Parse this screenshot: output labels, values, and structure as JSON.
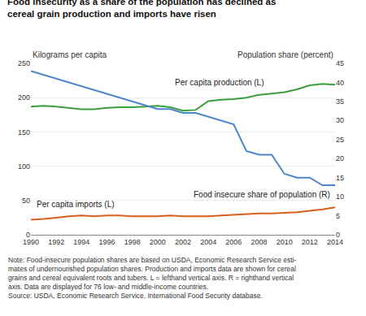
{
  "chart_data": {
    "type": "line",
    "title": "Food insecurity as a share of the population has declined as cereal grain production and imports have risen",
    "ylabel": "Kilograms per capita",
    "y2label": "Population share (percent)",
    "note": "Note: Food-insecure population shares are based on USDA, Economic Research Service esti-\nmates of undernourished population shares. Production and imports data are shown for cereal\ngrains and cereal equivalent roots and tubers. L = lefthand vertical axis. R = righthand vertical\naxis. Data are displayed for 76 low- and middle-income countries.\nSource: USDA, Economic Research Service, International Food Security database.",
    "x": [
      1990,
      1991,
      1992,
      1993,
      1994,
      1995,
      1996,
      1997,
      1998,
      1999,
      2000,
      2001,
      2002,
      2003,
      2004,
      2005,
      2006,
      2007,
      2008,
      2009,
      2010,
      2011,
      2012,
      2013,
      2014
    ],
    "series": [
      {
        "name": "Per capita production (L)",
        "color": "#3a9e3a",
        "values": [
          187,
          188,
          187,
          185,
          183,
          183,
          185,
          186,
          186,
          187,
          188,
          186,
          181,
          182,
          195,
          197,
          198,
          200,
          204,
          206,
          208,
          212,
          218,
          220,
          219
        ]
      },
      {
        "name": "Per capita imports (L)",
        "color": "#d4601a",
        "values": [
          22,
          23,
          25,
          27,
          28,
          27,
          28,
          28,
          27,
          27,
          27,
          28,
          27,
          27,
          27,
          28,
          29,
          30,
          31,
          31,
          32,
          33,
          35,
          37,
          40
        ]
      },
      {
        "name": "Food insecure share of population (R)",
        "color": "#4a86c8",
        "axis": "y2",
        "values": [
          43,
          42,
          41,
          40,
          39,
          38,
          37,
          36,
          35,
          34,
          33,
          33,
          32,
          32,
          31,
          30,
          29,
          22,
          21,
          21,
          16,
          15,
          15,
          13,
          13
        ]
      }
    ],
    "xlim": [
      1990,
      2014
    ],
    "xticks": [
      1990,
      1992,
      1994,
      1996,
      1998,
      2000,
      2002,
      2004,
      2006,
      2008,
      2010,
      2012,
      2014
    ],
    "ylim": [
      0,
      250
    ],
    "yticks": [
      0,
      50,
      100,
      150,
      200,
      250
    ],
    "y2lim": [
      0,
      45
    ],
    "y2ticks": [
      0,
      5,
      10,
      15,
      20,
      25,
      30,
      35,
      40,
      45
    ],
    "grid": true
  }
}
